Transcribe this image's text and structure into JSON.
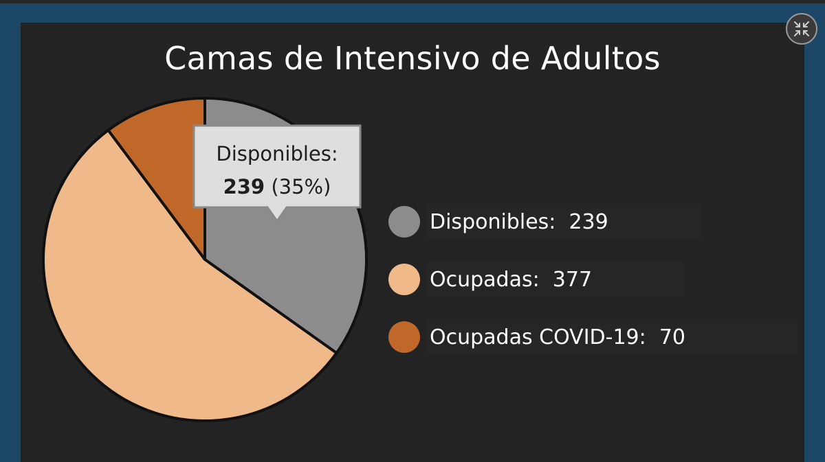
{
  "window": {
    "collapse_icon": "collapse-arrows-icon"
  },
  "chart_data": {
    "type": "pie",
    "title": "Camas de Intensivo de Adultos",
    "categories": [
      "Disponibles",
      "Ocupadas",
      "Ocupadas COVID-19"
    ],
    "values": [
      239,
      377,
      70
    ],
    "colors": [
      "#8c8c8c",
      "#efb98a",
      "#c0682a"
    ],
    "legend_placement": "right",
    "legend": [
      {
        "label": "Disponibles",
        "sep": ":  ",
        "value": "239",
        "color": "#8c8c8c"
      },
      {
        "label": "Ocupadas",
        "sep": ":  ",
        "value": "377",
        "color": "#efb98a"
      },
      {
        "label": "Ocupadas COVID-19",
        "sep": ":  ",
        "value": "70",
        "color": "#c0682a"
      }
    ],
    "tooltip": {
      "label": "Disponibles:",
      "value": "239",
      "percent": "(35%)"
    }
  }
}
